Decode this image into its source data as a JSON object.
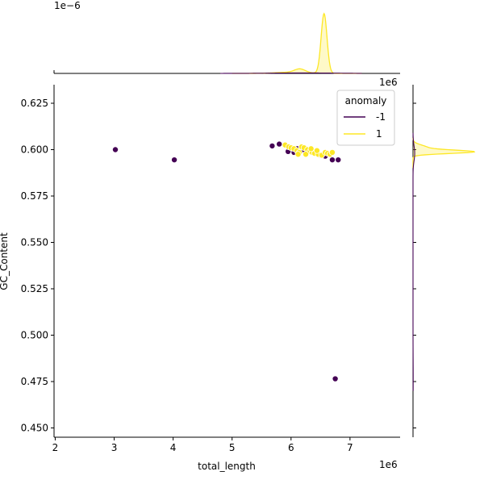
{
  "chart_data": {
    "type": "scatter",
    "kind": "jointplot",
    "xlabel": "total_length",
    "ylabel": "GC_Content",
    "x_offset_label": "1e6",
    "y_offset_label": "1e6",
    "marginal_offset_label": "1e−6",
    "xlim": [
      1.98,
      7.85
    ],
    "ylim": [
      0.445,
      0.635
    ],
    "x_ticks": [
      2,
      3,
      4,
      5,
      6,
      7
    ],
    "y_ticks": [
      0.45,
      0.475,
      0.5,
      0.525,
      0.55,
      0.575,
      0.6,
      0.625
    ],
    "x_tick_labels": [
      "2",
      "3",
      "4",
      "5",
      "6",
      "7"
    ],
    "y_tick_labels": [
      "0.450",
      "0.475",
      "0.500",
      "0.525",
      "0.550",
      "0.575",
      "0.600",
      "0.625"
    ],
    "legend": {
      "title": "anomaly",
      "placement": "top-right",
      "entries": [
        {
          "label": "-1",
          "color": "#440154"
        },
        {
          "label": "1",
          "color": "#fde725"
        }
      ]
    },
    "series": [
      {
        "name": "-1",
        "color": "#440154",
        "points": [
          [
            3.02,
            0.6
          ],
          [
            4.02,
            0.5945
          ],
          [
            5.68,
            0.602
          ],
          [
            5.8,
            0.603
          ],
          [
            5.95,
            0.599
          ],
          [
            6.1,
            0.6005
          ],
          [
            6.28,
            0.599
          ],
          [
            6.42,
            0.598
          ],
          [
            6.58,
            0.5965
          ],
          [
            6.7,
            0.5945
          ],
          [
            6.8,
            0.5945
          ],
          [
            6.75,
            0.4765
          ],
          [
            6.05,
            0.5985
          ],
          [
            6.2,
            0.6
          ],
          [
            6.5,
            0.597
          ]
        ]
      },
      {
        "name": "1",
        "color": "#fde725",
        "points": [
          [
            5.9,
            0.6025
          ],
          [
            5.96,
            0.6015
          ],
          [
            6.0,
            0.601
          ],
          [
            6.05,
            0.6005
          ],
          [
            6.1,
            0.5995
          ],
          [
            6.14,
            0.5985
          ],
          [
            6.18,
            0.6015
          ],
          [
            6.22,
            0.601
          ],
          [
            6.28,
            0.6
          ],
          [
            6.32,
            0.599
          ],
          [
            6.36,
            0.5985
          ],
          [
            6.4,
            0.598
          ],
          [
            6.46,
            0.5975
          ],
          [
            6.52,
            0.597
          ],
          [
            6.58,
            0.5985
          ],
          [
            6.62,
            0.598
          ],
          [
            6.66,
            0.5975
          ],
          [
            6.7,
            0.5985
          ],
          [
            6.12,
            0.5975
          ],
          [
            6.25,
            0.5975
          ],
          [
            6.34,
            0.6005
          ],
          [
            6.44,
            0.5995
          ]
        ]
      }
    ]
  }
}
